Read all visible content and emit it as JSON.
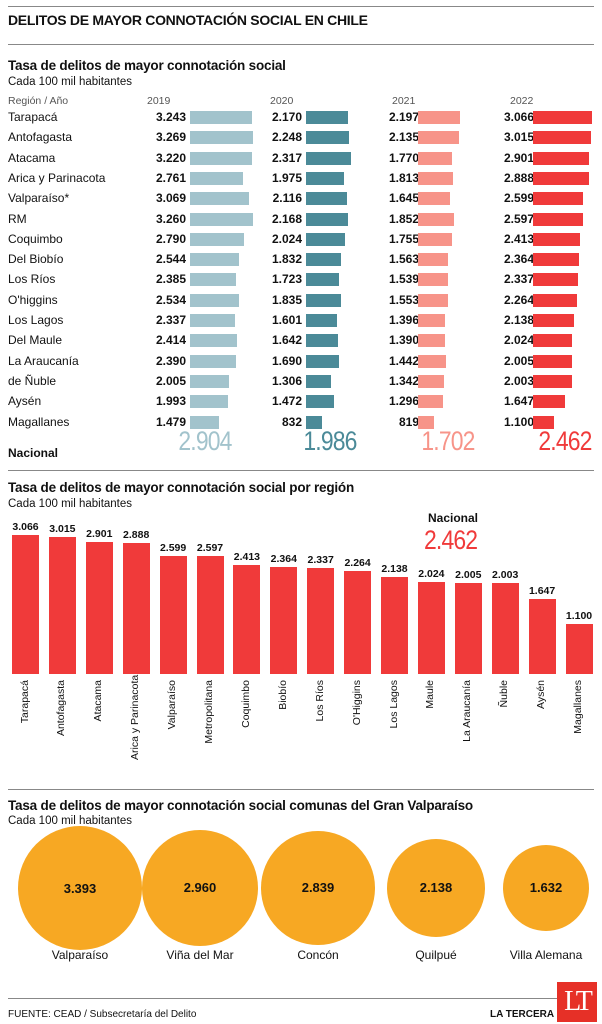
{
  "title": "DELITOS DE MAYOR CONNOTACIÓN SOCIAL EN CHILE",
  "section1": {
    "title": "Tasa de delitos de mayor connotación social",
    "subtitle": "Cada 100 mil habitantes",
    "region_header": "Región / Año",
    "national_label": "Nacional"
  },
  "section2": {
    "title": "Tasa de delitos de mayor connotación social por región",
    "subtitle": "Cada 100 mil habitantes",
    "national_label": "Nacional",
    "national_value": "2.462"
  },
  "section3": {
    "title": "Tasa de delitos de mayor connotación social comunas del Gran Valparaíso",
    "subtitle": "Cada 100 mil habitantes"
  },
  "footer": {
    "source": "FUENTE:  CEAD / Subsecretaría del Delito",
    "brand": "LA TERCERA",
    "logo": "LT"
  },
  "colors": {
    "2019": "#a2c3cc",
    "2020": "#4b8a98",
    "2021": "#f79489",
    "2022": "#f03a3a",
    "orange": "#f7a823"
  },
  "chart_data": [
    {
      "type": "bar",
      "years": [
        "2019",
        "2020",
        "2021",
        "2022"
      ],
      "categories": [
        "Tarapacá",
        "Antofagasta",
        "Atacama",
        "Arica y Parinacota",
        "Valparaíso*",
        "RM",
        "Coquimbo",
        "Del Biobío",
        "Los Ríos",
        "O'higgins",
        "Los Lagos",
        "Del Maule",
        "La Araucanía",
        "de Ñuble",
        "Aysén",
        "Magallanes"
      ],
      "series": [
        {
          "name": "2019",
          "values": [
            3243,
            3269,
            3220,
            2761,
            3069,
            3260,
            2790,
            2544,
            2385,
            2534,
            2337,
            2414,
            2390,
            2005,
            1993,
            1479
          ],
          "labels": [
            "3.243",
            "3.269",
            "3.220",
            "2.761",
            "3.069",
            "3.260",
            "2.790",
            "2.544",
            "2.385",
            "2.534",
            "2.337",
            "2.414",
            "2.390",
            "2.005",
            "1.993",
            "1.479"
          ],
          "national": "2.904"
        },
        {
          "name": "2020",
          "values": [
            2170,
            2248,
            2317,
            1975,
            2116,
            2168,
            2024,
            1832,
            1723,
            1835,
            1601,
            1642,
            1690,
            1306,
            1472,
            832
          ],
          "labels": [
            "2.170",
            "2.248",
            "2.317",
            "1.975",
            "2.116",
            "2.168",
            "2.024",
            "1.832",
            "1.723",
            "1.835",
            "1.601",
            "1.642",
            "1.690",
            "1.306",
            "1.472",
            "832"
          ],
          "national": "1.986"
        },
        {
          "name": "2021",
          "values": [
            2197,
            2135,
            1770,
            1813,
            1645,
            1852,
            1755,
            1563,
            1539,
            1553,
            1396,
            1390,
            1442,
            1342,
            1296,
            819
          ],
          "labels": [
            "2.197",
            "2.135",
            "1.770",
            "1.813",
            "1.645",
            "1.852",
            "1.755",
            "1.563",
            "1.539",
            "1.553",
            "1.396",
            "1.390",
            "1.442",
            "1.342",
            "1.296",
            "819"
          ],
          "national": "1.702"
        },
        {
          "name": "2022",
          "values": [
            3066,
            3015,
            2901,
            2888,
            2599,
            2597,
            2413,
            2364,
            2337,
            2264,
            2138,
            2024,
            2005,
            2003,
            1647,
            1100
          ],
          "labels": [
            "3.066",
            "3.015",
            "2.901",
            "2.888",
            "2.599",
            "2.597",
            "2.413",
            "2.364",
            "2.337",
            "2.264",
            "2.138",
            "2.024",
            "2.005",
            "2.003",
            "1.647",
            "1.100"
          ],
          "national": "2.462"
        }
      ]
    },
    {
      "type": "bar",
      "categories": [
        "Tarapacá",
        "Antofagasta",
        "Atacama",
        "Arica y Parinacota",
        "Valparaíso",
        "Metropolitana",
        "Coquimbo",
        "Biobío",
        "Los Ríos",
        "O'Higgins",
        "Los Lagos",
        "Maule",
        "La Araucanía",
        "Ñuble",
        "Aysén",
        "Magallanes"
      ],
      "values": [
        3066,
        3015,
        2901,
        2888,
        2599,
        2597,
        2413,
        2364,
        2337,
        2264,
        2138,
        2024,
        2005,
        2003,
        1647,
        1100
      ],
      "labels": [
        "3.066",
        "3.015",
        "2.901",
        "2.888",
        "2.599",
        "2.597",
        "2.413",
        "2.364",
        "2.337",
        "2.264",
        "2.138",
        "2.024",
        "2.005",
        "2.003",
        "1.647",
        "1.100"
      ]
    },
    {
      "type": "bubble",
      "categories": [
        "Valparaíso",
        "Viña del Mar",
        "Concón",
        "Quilpué",
        "Villa Alemana"
      ],
      "values": [
        3393,
        2960,
        2839,
        2138,
        1632
      ],
      "labels": [
        "3.393",
        "2.960",
        "2.839",
        "2.138",
        "1.632"
      ]
    }
  ]
}
